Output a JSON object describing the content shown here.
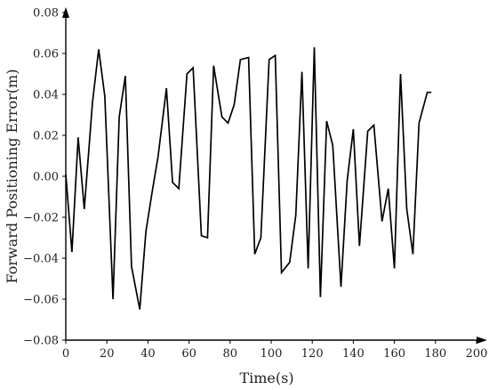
{
  "chart_data": {
    "type": "line",
    "xlabel": "Time(s)",
    "ylabel": "Forward Positioning Error(m)",
    "xlim": [
      0,
      200
    ],
    "ylim": [
      -0.08,
      0.08
    ],
    "xticks": [
      0,
      20,
      40,
      60,
      80,
      100,
      120,
      140,
      160,
      180,
      200
    ],
    "xtick_labels": [
      "0",
      "20",
      "40",
      "60",
      "80",
      "100",
      "120",
      "140",
      "160",
      "180",
      "200"
    ],
    "yticks": [
      -0.08,
      -0.06,
      -0.04,
      -0.02,
      0.0,
      0.02,
      0.04,
      0.06,
      0.08
    ],
    "ytick_labels": [
      "−0.08",
      "−0.06",
      "−0.04",
      "−0.02",
      "0.00",
      "0.02",
      "0.04",
      "0.06",
      "0.08"
    ],
    "grid": false,
    "series": [
      {
        "color": "#000000",
        "x": [
          0,
          3,
          6,
          9,
          13,
          16,
          19,
          23,
          26,
          29,
          32,
          36,
          39,
          42,
          45,
          49,
          52,
          55,
          59,
          62,
          66,
          69,
          72,
          76,
          79,
          82,
          85,
          89,
          92,
          95,
          99,
          102,
          105,
          109,
          112,
          115,
          118,
          121,
          124,
          127,
          130,
          134,
          137,
          140,
          143,
          147,
          150,
          154,
          157,
          160,
          163,
          166,
          169,
          172,
          176,
          178
        ],
        "y": [
          0.001,
          -0.037,
          0.019,
          -0.016,
          0.036,
          0.062,
          0.039,
          -0.06,
          0.029,
          0.049,
          -0.044,
          -0.065,
          -0.027,
          -0.008,
          0.01,
          0.043,
          -0.003,
          -0.006,
          0.05,
          0.053,
          -0.029,
          -0.03,
          0.054,
          0.029,
          0.026,
          0.035,
          0.057,
          0.058,
          -0.038,
          -0.03,
          0.057,
          0.059,
          -0.047,
          -0.042,
          -0.019,
          0.051,
          -0.045,
          0.063,
          -0.059,
          0.027,
          0.015,
          -0.054,
          -0.002,
          0.023,
          -0.034,
          0.022,
          0.025,
          -0.022,
          -0.006,
          -0.045,
          0.05,
          -0.016,
          -0.038,
          0.026,
          0.041,
          0.041
        ]
      }
    ]
  }
}
